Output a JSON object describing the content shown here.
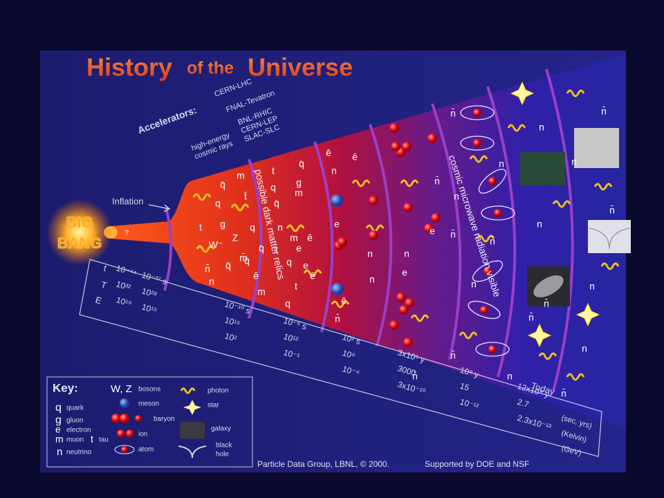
{
  "title": [
    "History",
    "of the",
    "Universe"
  ],
  "accelerators": {
    "heading": "Accelerators:",
    "labels": [
      "CERN-LHC",
      "FNAL-Tevatron",
      "BNL-RHIC",
      "CERN-LEP",
      "SLAC-SLC",
      "high-energy",
      "cosmic rays"
    ]
  },
  "inflation": "Inflation",
  "big_bang": [
    "BIG",
    "BANG"
  ],
  "unknown": "?",
  "arc_labels": [
    "possible dark matter relics",
    "cosmic microwave radiation visible"
  ],
  "particles": [
    "m",
    "t",
    "q̄",
    "q̄",
    "q",
    "g",
    "t̄",
    "q",
    "q̄",
    "m",
    "g",
    "q",
    "W⁻",
    "t",
    "Z",
    "q̄",
    "n",
    "m",
    "ē",
    "q̄",
    "t",
    "e",
    "n̄",
    "m̄",
    "q",
    "e",
    "q̄",
    "n",
    "ē",
    "m",
    "t",
    "ē",
    "q",
    "ē",
    "n",
    "ē",
    "n̄",
    "n",
    "e",
    "n",
    "ē",
    "n̄",
    "n",
    "e",
    "n̄",
    "e",
    "n̄",
    "n",
    "n",
    "n̄",
    "n̄",
    "n",
    "n̄",
    "n̄",
    "n",
    "n",
    "n̄",
    "n",
    "n̄",
    "n",
    "n",
    "n̄",
    "n",
    "n̄"
  ],
  "timeline": {
    "rows": [
      "t",
      "T",
      "E"
    ],
    "columns": [
      [
        "10⁻⁴⁴",
        "10³²",
        "10¹⁹"
      ],
      [
        "10⁻³⁷ s",
        "10²⁸",
        "10¹⁵"
      ],
      [
        "10⁻¹⁰ s",
        "10¹⁵",
        "10²"
      ],
      [
        "10⁻⁵ s",
        "10¹²",
        "10⁻¹"
      ],
      [
        "10² s",
        "10⁹",
        "10⁻⁴"
      ],
      [
        "3x10⁵ y",
        "3000",
        "3x10⁻¹⁰"
      ],
      [
        "10⁹ y",
        "15",
        "10⁻¹²"
      ],
      [
        "12x10⁹ y",
        "2.7",
        "2.3x10⁻¹³"
      ]
    ],
    "today": "Today",
    "units": [
      "(sec, yrs)",
      "(Kelvin)",
      "(GeV)"
    ]
  },
  "key": {
    "title": "Key:",
    "symbols": [
      "q",
      "g",
      "e",
      "m",
      "t",
      "n",
      "W, Z"
    ],
    "labels": [
      "quark",
      "gluon",
      "electron",
      "muon",
      "tau",
      "neutrino",
      "bosons",
      "meson",
      "baryon",
      "ion",
      "atom",
      "photon",
      "star",
      "galaxy",
      "black",
      "hole"
    ]
  },
  "footer": [
    "Particle Data Group, LBNL, © 2000.",
    "Supported by DOE and NSF"
  ]
}
